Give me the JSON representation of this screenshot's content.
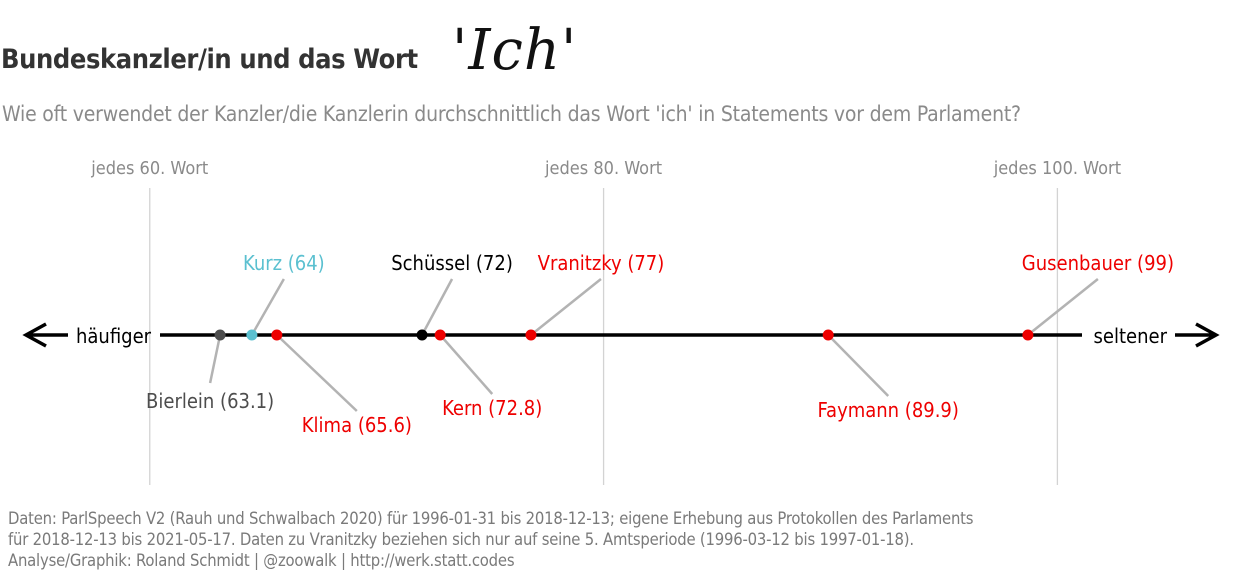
{
  "title": "Bundeskanzler/in und das Wort",
  "title_highlight": "'Ich'",
  "subtitle": "Wie oft verwendet der Kanzler/die Kanzlerin durchschnittlich das Wort 'ich' in Statements vor dem Parlament?",
  "caption": [
    "Daten: ParlSpeech V2 (Rauh und Schwalbach 2020) für 1996-01-31 bis 2018-12-13; eigene Erhebung aus Protokollen des Parlaments",
    "für 2018-12-13 bis 2021-05-17. Daten zu Vranitzky beziehen sich nur auf seine 5. Amtsperiode (1996-03-12 bis 1997-01-18).",
    "Analyse/Graphik: Roland Schmidt | @zoowalk | http://werk.statt.codes"
  ],
  "colors": {
    "red": "#ee0000",
    "black": "#000000",
    "dark_gray": "#4d4d4d",
    "cyan": "#5bc0d0",
    "grid": "#d3d3d3",
    "connector": "#b3b3b3"
  },
  "chart_data": {
    "type": "scatter",
    "x_range": [
      53.4,
      108.4
    ],
    "axis_left_label": "häufiger",
    "axis_right_label": "seltener",
    "reference_lines": [
      {
        "x": 60,
        "label": "jedes 60. Wort"
      },
      {
        "x": 80,
        "label": "jedes 80. Wort"
      },
      {
        "x": 100,
        "label": "jedes 100. Wort"
      }
    ],
    "points": [
      {
        "name": "Bierlein",
        "value": 63.1,
        "label": "Bierlein (63.1)",
        "color": "#4d4d4d",
        "label_side": "below"
      },
      {
        "name": "Kurz",
        "value": 64.5,
        "label": "Kurz (64)",
        "color": "#5bc0d0",
        "label_side": "above"
      },
      {
        "name": "Klima",
        "value": 65.6,
        "label": "Klima (65.6)",
        "color": "#ee0000",
        "label_side": "below"
      },
      {
        "name": "Schüssel",
        "value": 72,
        "label": "Schüssel (72)",
        "color": "#000000",
        "label_side": "above"
      },
      {
        "name": "Kern",
        "value": 72.8,
        "label": "Kern (72.8)",
        "color": "#ee0000",
        "label_side": "below"
      },
      {
        "name": "Vranitzky",
        "value": 76.8,
        "label": "Vranitzky (77)",
        "color": "#ee0000",
        "label_side": "above"
      },
      {
        "name": "Faymann",
        "value": 89.9,
        "label": "Faymann (89.9)",
        "color": "#ee0000",
        "label_side": "below"
      },
      {
        "name": "Gusenbauer",
        "value": 98.7,
        "label": "Gusenbauer (99)",
        "color": "#ee0000",
        "label_side": "above"
      }
    ]
  }
}
